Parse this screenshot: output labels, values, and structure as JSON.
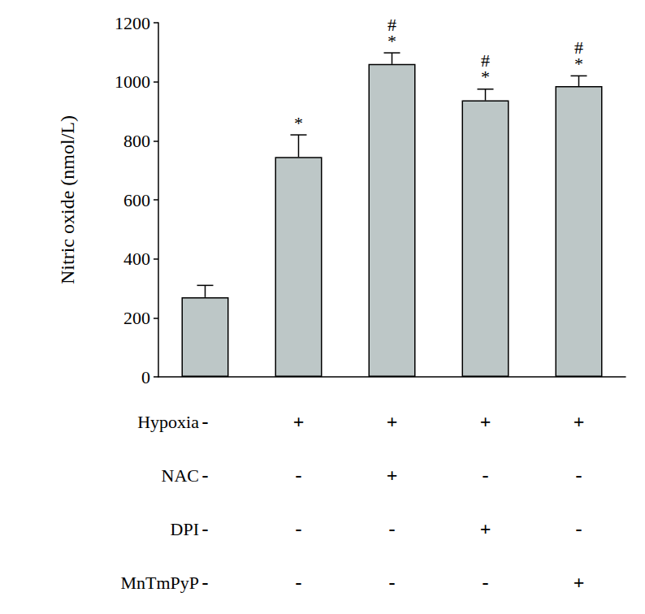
{
  "chart_data": {
    "type": "bar",
    "categories": [
      null,
      null,
      null,
      null,
      null
    ],
    "values": [
      270,
      745,
      1060,
      937,
      985
    ],
    "errors": [
      40,
      75,
      38,
      38,
      35
    ],
    "color": "#bdc7c7",
    "ylabel": "Nitric oxide (nmol/L)",
    "ylim": [
      0,
      1200
    ],
    "yticks": [
      0,
      200,
      400,
      600,
      800,
      1000,
      1200
    ],
    "grid": false,
    "significance": [
      [],
      [
        "*"
      ],
      [
        "#",
        "*"
      ],
      [
        "#",
        "*"
      ],
      [
        "#",
        "*"
      ]
    ],
    "conditions": [
      {
        "name": "Hypoxia",
        "signs": [
          "-",
          "+",
          "+",
          "+",
          "+"
        ]
      },
      {
        "name": "NAC",
        "signs": [
          "-",
          "-",
          "+",
          "-",
          "-"
        ]
      },
      {
        "name": "DPI",
        "signs": [
          "-",
          "-",
          "-",
          "+",
          "-"
        ]
      },
      {
        "name": "MnTmPyP",
        "signs": [
          "-",
          "-",
          "-",
          "-",
          "+"
        ]
      }
    ]
  }
}
